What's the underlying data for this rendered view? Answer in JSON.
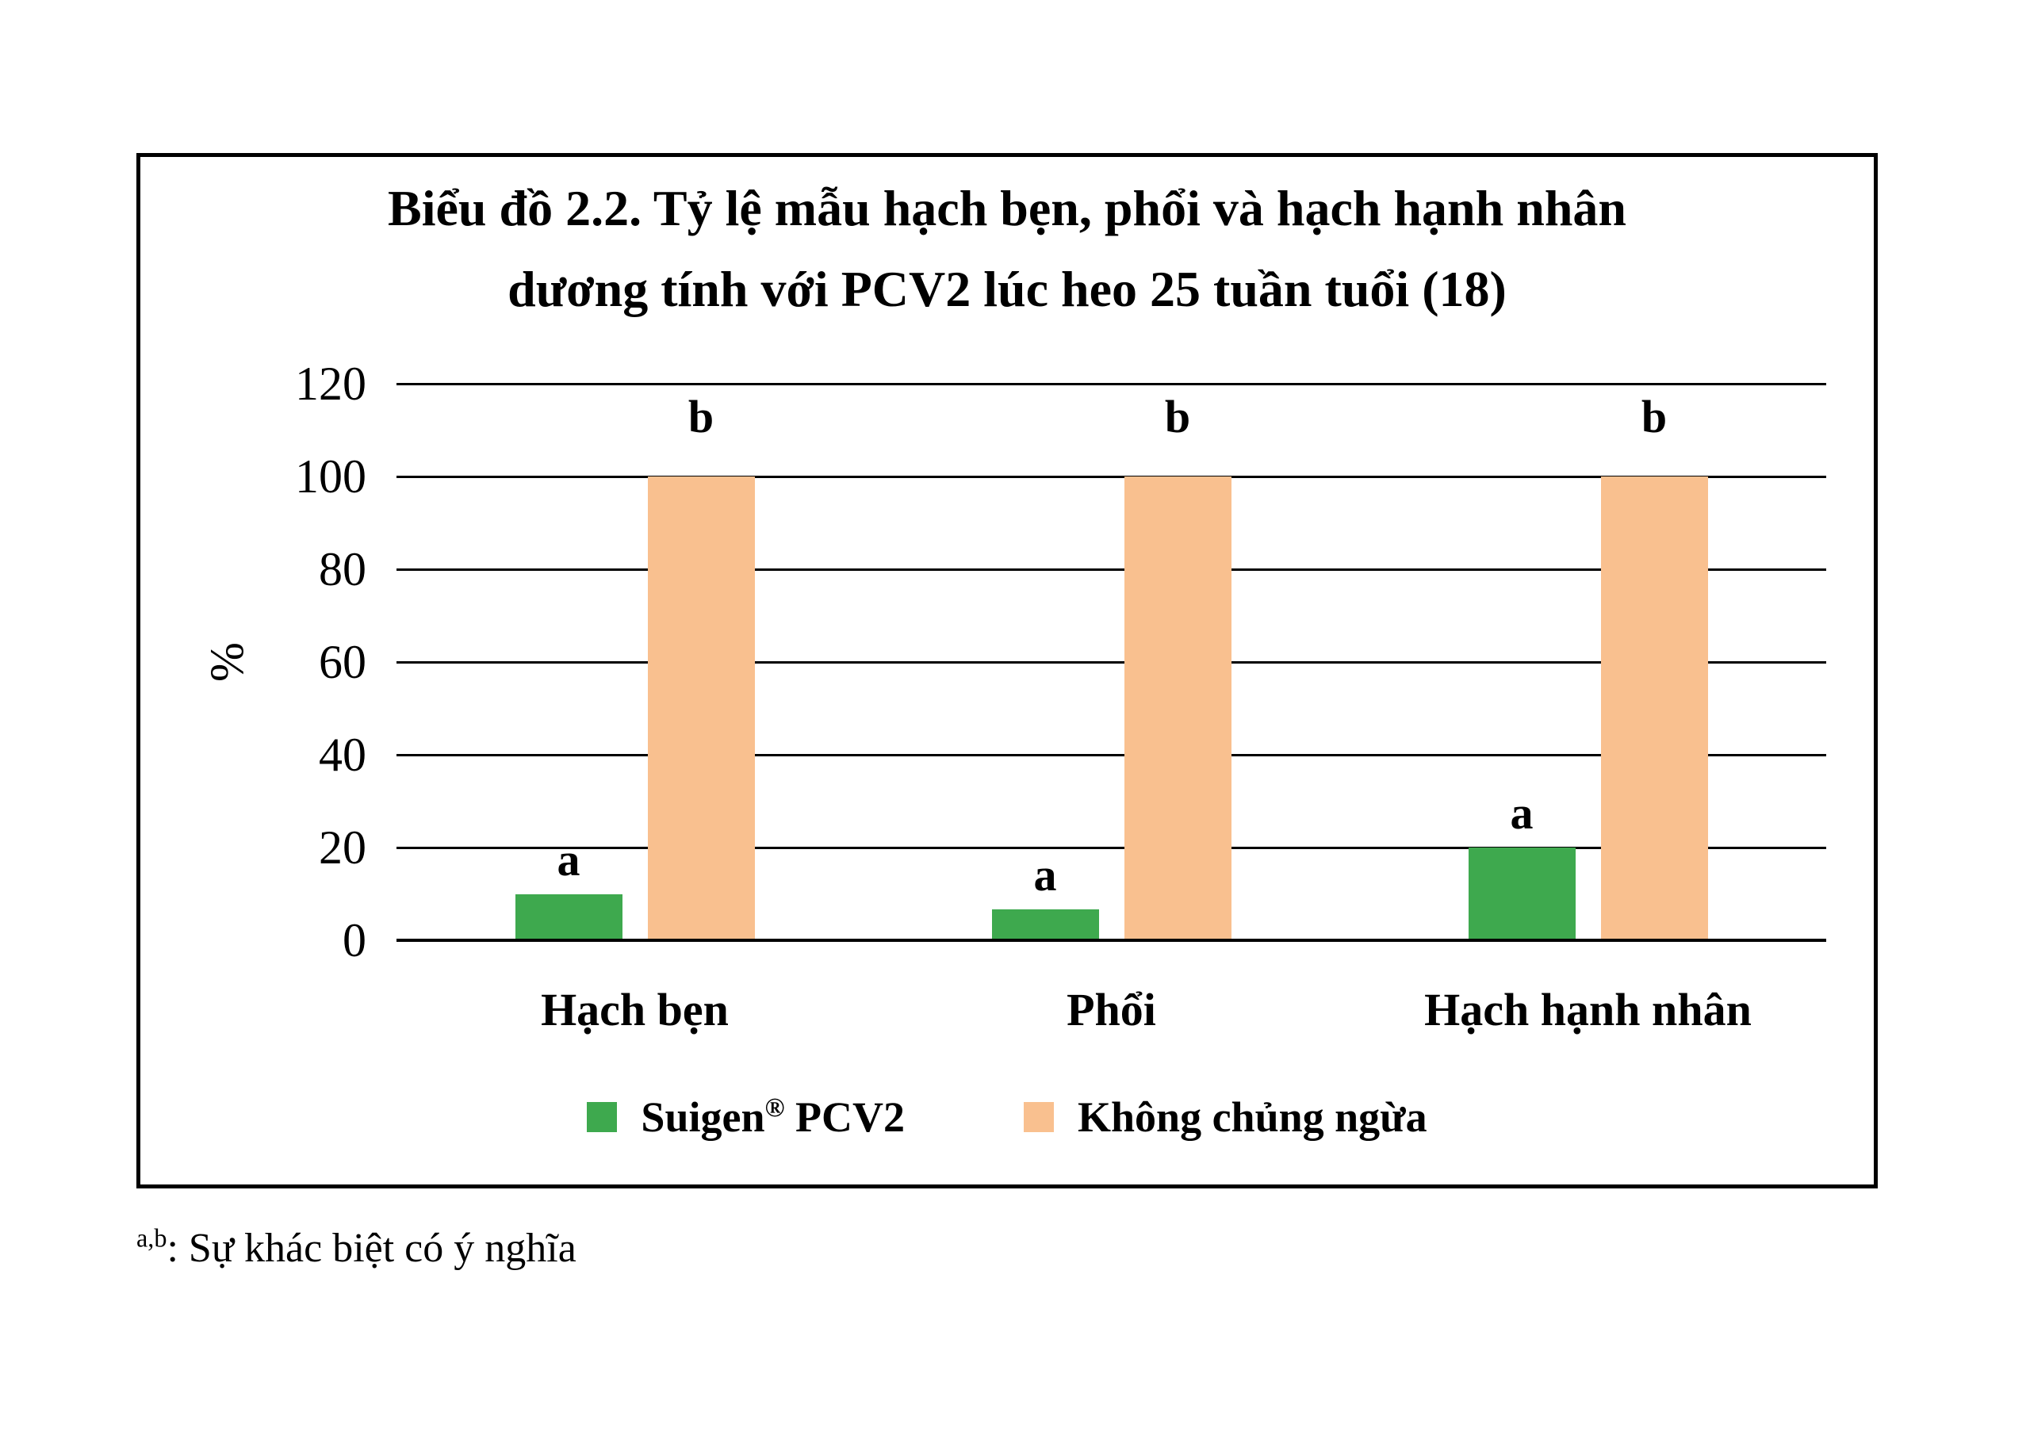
{
  "chart_data": {
    "type": "bar",
    "title_lines": [
      "Biểu đồ 2.2. Tỷ lệ mẫu hạch bẹn, phổi và hạch hạnh nhân",
      "dương tính với PCV2 lúc heo 25 tuần tuổi (18)"
    ],
    "categories": [
      "Hạch bẹn",
      "Phổi",
      "Hạch hạnh nhân"
    ],
    "series": [
      {
        "name": "Suigen® PCV2",
        "slug": "suigen-pcv2",
        "color": "#3EA94E",
        "values": [
          10,
          6.7,
          20
        ],
        "bar_labels": [
          "a",
          "a",
          "a"
        ]
      },
      {
        "name": "Không chủng ngừa",
        "slug": "khong-chung-ngua",
        "color": "#F9C08F",
        "values": [
          100,
          100,
          100
        ],
        "bar_labels": [
          "b",
          "b",
          "b"
        ]
      }
    ],
    "ylabel": "%",
    "ylim": [
      0,
      120
    ],
    "yticks": [
      0,
      20,
      40,
      60,
      80,
      100,
      120
    ],
    "grid": "horizontal",
    "legend_position": "bottom-inside",
    "frame": "outer-black-border"
  },
  "legend": {
    "entries": [
      {
        "pre": "Suigen",
        "sup": "®",
        "post": " PCV2",
        "color": "#3EA94E",
        "slug": "suigen-pcv2"
      },
      {
        "pre": "Không chủng ngừa",
        "sup": "",
        "post": "",
        "color": "#F9C08F",
        "slug": "khong-chung-ngua"
      }
    ]
  },
  "footnote": {
    "sup": "a,b",
    "text": ": Sự khác biệt có ý nghĩa"
  }
}
